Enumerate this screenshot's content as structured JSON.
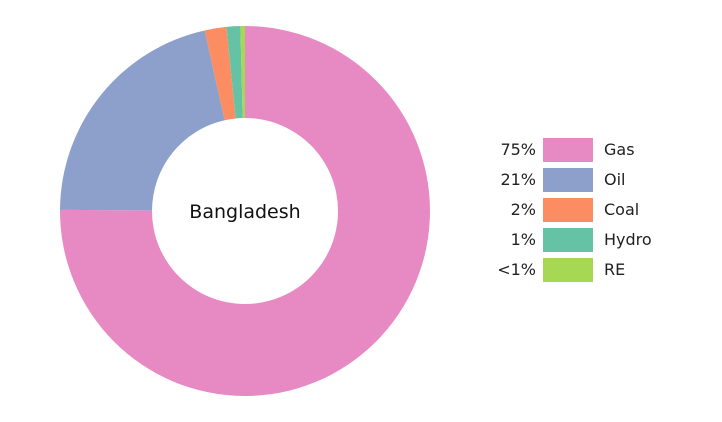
{
  "chart_data": {
    "type": "pie",
    "variant": "donut",
    "center_label": "Bangladesh",
    "legend_position": "right",
    "slices": [
      {
        "label": "Gas",
        "pct_label": "75%",
        "value": 75.1,
        "color": "#e78ac3"
      },
      {
        "label": "Oil",
        "pct_label": "21%",
        "value": 21.4,
        "color": "#8da0cb"
      },
      {
        "label": "Coal",
        "pct_label": "2%",
        "value": 1.9,
        "color": "#fc8d62"
      },
      {
        "label": "Hydro",
        "pct_label": "1%",
        "value": 1.2,
        "color": "#66c2a5"
      },
      {
        "label": "RE",
        "pct_label": "<1%",
        "value": 0.4,
        "color": "#a6d854"
      }
    ]
  }
}
